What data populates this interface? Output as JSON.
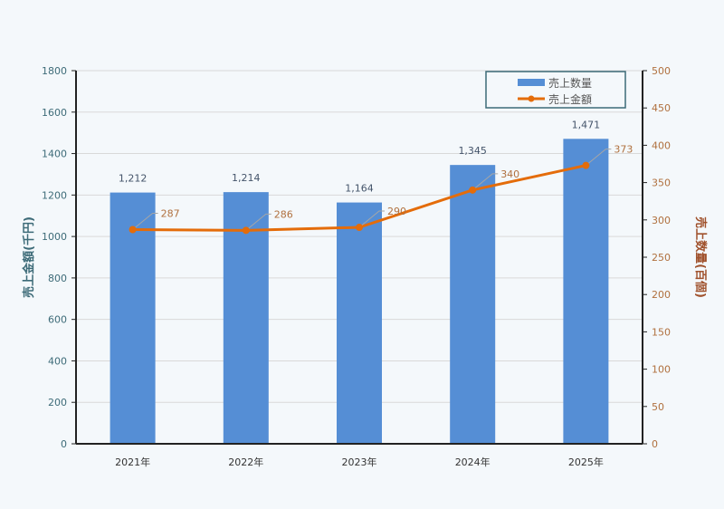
{
  "chart_data": {
    "type": "bar+line",
    "categories": [
      "2021年",
      "2022年",
      "2023年",
      "2024年",
      "2025年"
    ],
    "series": [
      {
        "name": "売上数量",
        "type": "bar",
        "axis": "left",
        "values": [
          1212,
          1214,
          1164,
          1345,
          1471
        ],
        "labels": [
          "1,212",
          "1,214",
          "1,164",
          "1,345",
          "1,471"
        ],
        "color": "#558ed5"
      },
      {
        "name": "売上金額",
        "type": "line",
        "axis": "right",
        "values": [
          287,
          286,
          290,
          340,
          373
        ],
        "labels": [
          "287",
          "286",
          "290",
          "340",
          "373"
        ],
        "color": "#e46c0a"
      }
    ],
    "ylabel": "売上金額(千円)",
    "y2label": "売上数量(百個)",
    "ylim": [
      0,
      1800
    ],
    "y2lim": [
      0,
      500
    ],
    "yticks": [
      0,
      200,
      400,
      600,
      800,
      1000,
      1200,
      1400,
      1600,
      1800
    ],
    "y2ticks": [
      0,
      50,
      100,
      150,
      200,
      250,
      300,
      350,
      400,
      450,
      500
    ],
    "grid": true,
    "legend": "top-right"
  }
}
